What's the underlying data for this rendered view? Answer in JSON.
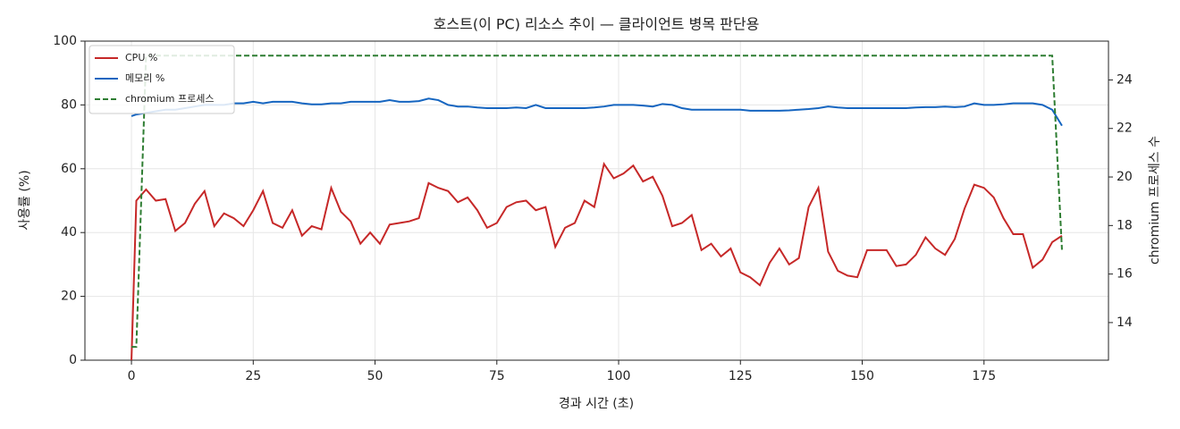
{
  "chart_data": {
    "type": "line",
    "title": "호스트(이 PC) 리소스 추이 — 클라이언트 병목 판단용",
    "x_label": "경과 시간 (초)",
    "y_label": "사용률 (%)",
    "y2_label": "chromium 프로세스 수",
    "x": [
      0,
      1,
      3,
      5,
      7,
      9,
      11,
      13,
      15,
      17,
      19,
      21,
      23,
      25,
      27,
      29,
      31,
      33,
      35,
      37,
      39,
      41,
      43,
      45,
      47,
      49,
      51,
      53,
      55,
      57,
      59,
      61,
      63,
      65,
      67,
      69,
      71,
      73,
      75,
      77,
      79,
      81,
      83,
      85,
      87,
      89,
      91,
      93,
      95,
      97,
      99,
      101,
      103,
      105,
      107,
      109,
      111,
      113,
      115,
      117,
      119,
      121,
      123,
      125,
      127,
      129,
      131,
      133,
      135,
      137,
      139,
      141,
      143,
      145,
      147,
      149,
      151,
      153,
      155,
      157,
      159,
      161,
      163,
      165,
      167,
      169,
      171,
      173,
      175,
      177,
      179,
      181,
      183,
      185,
      187,
      189,
      191
    ],
    "series": [
      {
        "name": "CPU %",
        "color": "#c62828",
        "dash": false,
        "values": [
          0,
          50,
          53.5,
          50,
          50.5,
          40.5,
          43,
          49,
          53,
          42,
          46,
          44.5,
          42,
          47,
          53,
          43,
          41.5,
          47,
          39,
          42,
          41,
          54,
          46.5,
          43.5,
          36.5,
          40,
          36.5,
          42.5,
          43,
          43.5,
          44.5,
          55.5,
          54,
          53,
          49.5,
          51,
          47,
          41.5,
          43,
          48,
          49.5,
          50,
          47,
          48,
          35.5,
          41.5,
          43,
          50,
          48,
          61.5,
          57,
          58.5,
          61,
          56,
          57.5,
          51.5,
          42,
          43,
          45.5,
          34.5,
          36.5,
          32.5,
          35,
          27.5,
          26,
          23.5,
          30.5,
          35,
          30,
          32,
          48,
          54,
          34,
          28,
          26.5,
          26,
          34.5,
          34.5,
          34.5,
          29.5,
          30,
          33,
          38.5,
          35,
          33,
          38,
          47.5,
          55,
          54,
          51,
          44.5,
          39.5,
          39.5,
          29,
          31.5,
          37,
          39
        ]
      },
      {
        "name": "메모리 %",
        "color": "#1565c0",
        "dash": false,
        "values": [
          76.5,
          77,
          77.5,
          78,
          78.5,
          78.5,
          79,
          79.5,
          80,
          80,
          80,
          80.5,
          80.5,
          81,
          80.5,
          81,
          81,
          81,
          80.5,
          80.2,
          80.2,
          80.5,
          80.5,
          81,
          81,
          81,
          81,
          81.5,
          81,
          81,
          81.2,
          82,
          81.5,
          80,
          79.5,
          79.5,
          79.2,
          79,
          79,
          79,
          79.2,
          79,
          80,
          79,
          79,
          79,
          79,
          79,
          79.2,
          79.5,
          80,
          80,
          80,
          79.8,
          79.5,
          80.3,
          80,
          79,
          78.5,
          78.5,
          78.5,
          78.5,
          78.5,
          78.5,
          78.2,
          78.2,
          78.2,
          78.2,
          78.3,
          78.5,
          78.7,
          79,
          79.5,
          79.2,
          79,
          79,
          79,
          79,
          79,
          79,
          79,
          79.2,
          79.3,
          79.3,
          79.5,
          79.3,
          79.5,
          80.5,
          80,
          80,
          80.2,
          80.5,
          80.5,
          80.5,
          80,
          78.5,
          73.5
        ]
      },
      {
        "name": "chromium 프로세스",
        "color": "#2e7d32",
        "dash": true,
        "axis": "y2",
        "values": [
          13,
          13,
          25,
          25,
          25,
          25,
          25,
          25,
          25,
          25,
          25,
          25,
          25,
          25,
          25,
          25,
          25,
          25,
          25,
          25,
          25,
          25,
          25,
          25,
          25,
          25,
          25,
          25,
          25,
          25,
          25,
          25,
          25,
          25,
          25,
          25,
          25,
          25,
          25,
          25,
          25,
          25,
          25,
          25,
          25,
          25,
          25,
          25,
          25,
          25,
          25,
          25,
          25,
          25,
          25,
          25,
          25,
          25,
          25,
          25,
          25,
          25,
          25,
          25,
          25,
          25,
          25,
          25,
          25,
          25,
          25,
          25,
          25,
          25,
          25,
          25,
          25,
          25,
          25,
          25,
          25,
          25,
          25,
          25,
          25,
          25,
          25,
          25,
          25,
          25,
          25,
          25,
          25,
          25,
          25,
          25,
          17
        ]
      }
    ],
    "xlim": [
      -9.55,
      200.55
    ],
    "ylim": [
      0,
      100
    ],
    "y2lim": [
      12.45,
      25.6
    ],
    "xticks": [
      0,
      25,
      50,
      75,
      100,
      125,
      150,
      175
    ],
    "yticks": [
      0,
      20,
      40,
      60,
      80,
      100
    ],
    "y2ticks": [
      14,
      16,
      18,
      20,
      22,
      24
    ],
    "grid": true,
    "legend": "upper-left"
  }
}
